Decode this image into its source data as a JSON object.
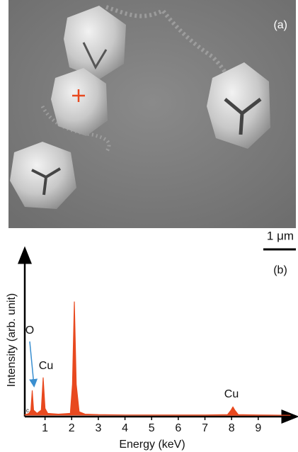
{
  "panel_a": {
    "label": "(a)",
    "scale_bar": "1 μm"
  },
  "chart_data": {
    "type": "area",
    "panel_label": "(b)",
    "x_label": "Energy (keV)",
    "y_label": "Intensity (arb. unit)",
    "annotations": [
      "O",
      "Cu",
      "Cu",
      "c"
    ],
    "xlim": [
      0.24,
      10.2
    ],
    "ylim": [
      0,
      100
    ],
    "xticks": [
      1,
      2,
      3,
      4,
      5,
      6,
      7,
      8,
      9
    ],
    "grid": false,
    "series": [
      {
        "color": "#e8491f",
        "x": [
          0.24,
          0.4,
          0.47,
          0.52,
          0.57,
          0.7,
          0.86,
          0.93,
          1.0,
          1.1,
          1.5,
          1.95,
          2.03,
          2.1,
          2.17,
          2.28,
          2.5,
          3,
          4,
          5,
          6,
          7,
          7.85,
          7.98,
          8.05,
          8.12,
          8.25,
          9,
          10.2
        ],
        "values": [
          1,
          2,
          4,
          16,
          4,
          2,
          4,
          24,
          5,
          2,
          1.5,
          2,
          20,
          71,
          20,
          3,
          1.5,
          1.2,
          1,
          1,
          1,
          1,
          1.2,
          4,
          6,
          4,
          1.2,
          1,
          0.8
        ]
      }
    ]
  }
}
